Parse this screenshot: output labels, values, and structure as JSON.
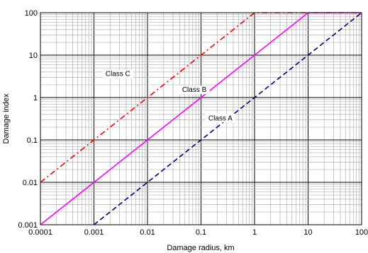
{
  "chart_data": {
    "type": "line",
    "x_scale": "log",
    "y_scale": "log",
    "xlabel": "Damage radius, km",
    "ylabel": "Damage index",
    "xlim": [
      0.0001,
      100
    ],
    "ylim": [
      0.001,
      100
    ],
    "x_ticks": [
      "0.0001",
      "0.001",
      "0.01",
      "0.1",
      "1",
      "10",
      "100"
    ],
    "y_ticks": [
      "0.001",
      "0.01",
      "0.1",
      "1",
      "10",
      "100"
    ],
    "grid": true,
    "series": [
      {
        "name": "Class C",
        "color": "#ff0000",
        "dash": "dash-dot",
        "x": [
          0.0001,
          1,
          100
        ],
        "y": [
          0.01,
          100,
          100
        ]
      },
      {
        "name": "Class B",
        "color": "#ff00ff",
        "dash": "solid",
        "x": [
          0.0001,
          10,
          100
        ],
        "y": [
          0.001,
          100,
          100
        ]
      },
      {
        "name": "Class A",
        "color": "#000080",
        "dash": "dashed",
        "x": [
          0.001,
          100
        ],
        "y": [
          0.001,
          100
        ]
      }
    ]
  }
}
